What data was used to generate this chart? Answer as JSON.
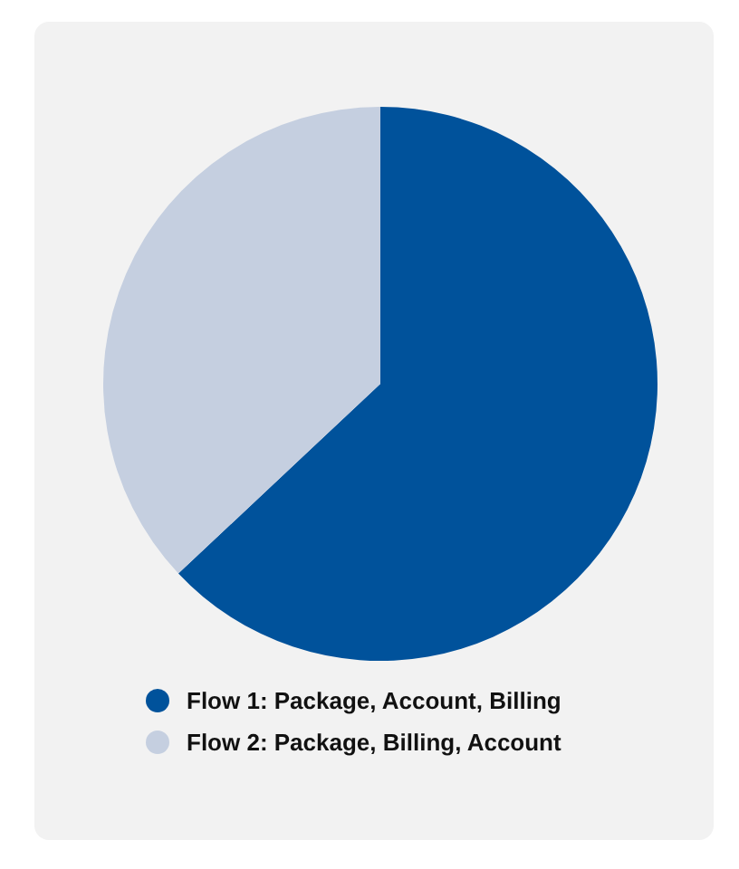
{
  "chart_data": {
    "type": "pie",
    "categories": [
      "Flow 1: Package, Account, Billing",
      "Flow 2: Package, Billing, Account"
    ],
    "values": [
      63,
      37
    ],
    "colors": [
      "#00529b",
      "#c5cfe0"
    ],
    "legend": "bottom"
  }
}
